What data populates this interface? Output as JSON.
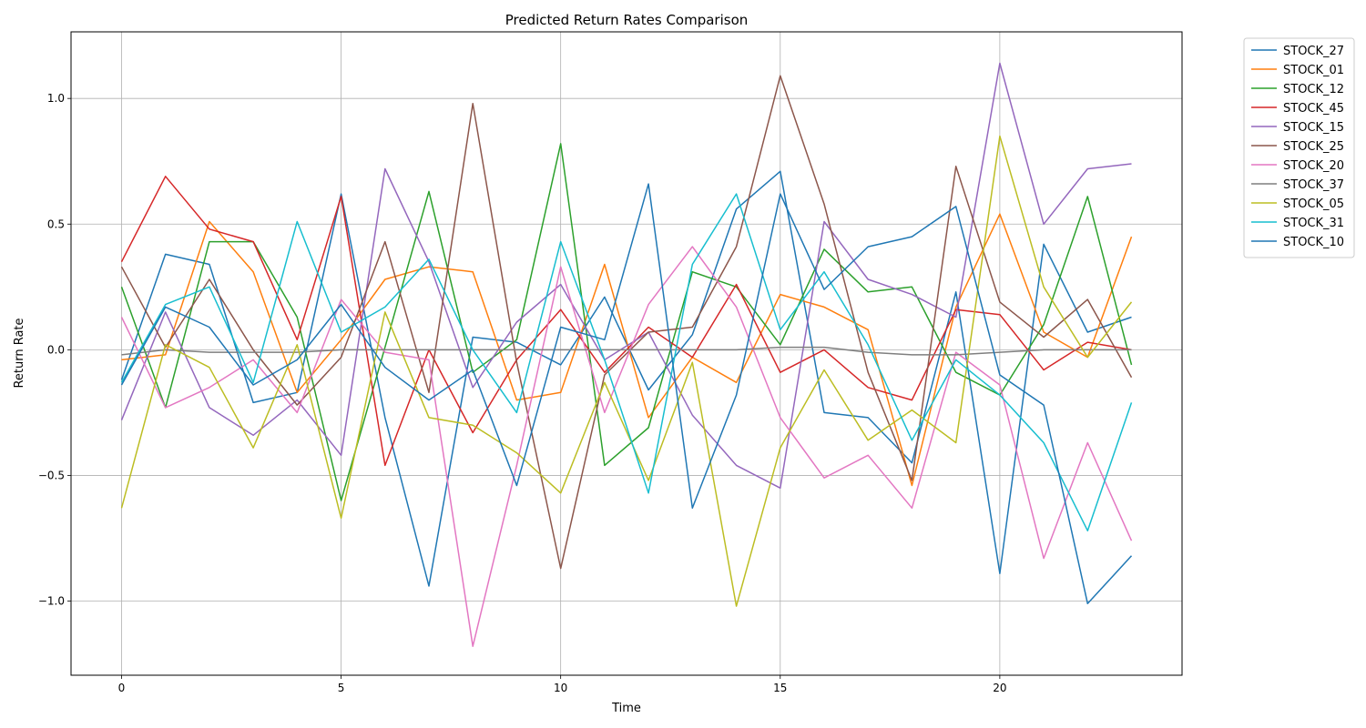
{
  "chart_data": {
    "type": "line",
    "title": "Predicted Return Rates Comparison",
    "xlabel": "Time",
    "ylabel": "Return Rate",
    "xlim": [
      -1.15,
      24.15
    ],
    "ylim": [
      -1.295,
      1.265
    ],
    "xticks": [
      0,
      5,
      10,
      15,
      20
    ],
    "yticks": [
      -1.0,
      -0.5,
      0.0,
      0.5,
      1.0
    ],
    "ytick_labels": [
      "−1.0",
      "−0.5",
      "0.0",
      "0.5",
      "1.0"
    ],
    "grid": true,
    "legend_position": "outside-top-right",
    "x": [
      0,
      1,
      2,
      3,
      4,
      5,
      6,
      7,
      8,
      9,
      10,
      11,
      12,
      13,
      14,
      15,
      16,
      17,
      18,
      19,
      20,
      21,
      22,
      23
    ],
    "series": [
      {
        "name": "STOCK_27",
        "color": "#1f77b4",
        "values": [
          -0.12,
          0.38,
          0.34,
          -0.21,
          -0.17,
          0.62,
          -0.27,
          -0.94,
          0.05,
          0.03,
          -0.06,
          0.21,
          -0.16,
          0.06,
          0.56,
          0.71,
          -0.25,
          -0.27,
          -0.45,
          0.23,
          -0.89,
          0.42,
          0.07,
          0.13
        ]
      },
      {
        "name": "STOCK_01",
        "color": "#ff7f0e",
        "values": [
          -0.04,
          -0.02,
          0.51,
          0.31,
          -0.17,
          0.04,
          0.28,
          0.33,
          0.31,
          -0.2,
          -0.17,
          0.34,
          -0.27,
          -0.03,
          -0.13,
          0.22,
          0.17,
          0.08,
          -0.54,
          0.17,
          0.54,
          0.07,
          -0.03,
          0.45
        ]
      },
      {
        "name": "STOCK_12",
        "color": "#2ca02c",
        "values": [
          0.25,
          -0.23,
          0.43,
          0.43,
          0.13,
          -0.6,
          0.01,
          0.63,
          -0.09,
          0.04,
          0.82,
          -0.46,
          -0.31,
          0.31,
          0.25,
          0.02,
          0.4,
          0.23,
          0.25,
          -0.09,
          -0.18,
          0.1,
          0.61,
          -0.06
        ]
      },
      {
        "name": "STOCK_45",
        "color": "#d62728",
        "values": [
          0.35,
          0.69,
          0.48,
          0.43,
          0.04,
          0.61,
          -0.46,
          0.0,
          -0.33,
          -0.04,
          0.16,
          -0.09,
          0.09,
          -0.03,
          0.26,
          -0.09,
          0.0,
          -0.15,
          -0.2,
          0.16,
          0.14,
          -0.08,
          0.03,
          0.0
        ]
      },
      {
        "name": "STOCK_15",
        "color": "#9467bd",
        "values": [
          -0.28,
          0.15,
          -0.23,
          -0.34,
          -0.2,
          -0.42,
          0.72,
          0.35,
          -0.15,
          0.11,
          0.26,
          -0.04,
          0.07,
          -0.26,
          -0.46,
          -0.55,
          0.51,
          0.28,
          0.22,
          0.13,
          1.14,
          0.5,
          0.72,
          0.74
        ]
      },
      {
        "name": "STOCK_25",
        "color": "#8c564b",
        "values": [
          0.33,
          0.01,
          0.28,
          0.0,
          -0.22,
          -0.03,
          0.43,
          -0.17,
          0.98,
          -0.05,
          -0.87,
          -0.1,
          0.07,
          0.09,
          0.41,
          1.09,
          0.58,
          -0.09,
          -0.52,
          0.73,
          0.19,
          0.05,
          0.2,
          -0.11
        ]
      },
      {
        "name": "STOCK_20",
        "color": "#e377c2",
        "values": [
          0.13,
          -0.23,
          -0.15,
          -0.04,
          -0.25,
          0.2,
          -0.01,
          -0.04,
          -1.18,
          -0.46,
          0.33,
          -0.25,
          0.18,
          0.41,
          0.17,
          -0.27,
          -0.51,
          -0.42,
          -0.63,
          -0.01,
          -0.14,
          -0.83,
          -0.37,
          -0.76
        ]
      },
      {
        "name": "STOCK_37",
        "color": "#7f7f7f",
        "values": [
          -0.02,
          0.0,
          -0.01,
          -0.01,
          -0.01,
          0.0,
          0.0,
          0.0,
          0.0,
          0.0,
          0.0,
          0.0,
          0.0,
          0.0,
          0.0,
          0.01,
          0.01,
          -0.01,
          -0.02,
          -0.02,
          -0.01,
          0.0,
          0.0,
          0.0
        ]
      },
      {
        "name": "STOCK_05",
        "color": "#bcbd22",
        "values": [
          -0.63,
          0.02,
          -0.07,
          -0.39,
          0.02,
          -0.67,
          0.15,
          -0.27,
          -0.3,
          -0.41,
          -0.57,
          -0.13,
          -0.52,
          -0.05,
          -1.02,
          -0.39,
          -0.08,
          -0.36,
          -0.24,
          -0.37,
          0.85,
          0.25,
          -0.03,
          0.19
        ]
      },
      {
        "name": "STOCK_31",
        "color": "#17becf",
        "values": [
          -0.13,
          0.18,
          0.25,
          -0.13,
          0.51,
          0.07,
          0.17,
          0.36,
          0.0,
          -0.25,
          0.43,
          -0.04,
          -0.57,
          0.34,
          0.62,
          0.08,
          0.31,
          0.02,
          -0.36,
          -0.04,
          -0.18,
          -0.37,
          -0.72,
          -0.21
        ]
      },
      {
        "name": "STOCK_10",
        "color": "#1f77b4",
        "values": [
          -0.14,
          0.17,
          0.09,
          -0.14,
          -0.04,
          0.18,
          -0.07,
          -0.2,
          -0.08,
          -0.54,
          0.09,
          0.04,
          0.66,
          -0.63,
          -0.18,
          0.62,
          0.24,
          0.41,
          0.45,
          0.57,
          -0.1,
          -0.22,
          -1.01,
          -0.82
        ]
      }
    ]
  }
}
